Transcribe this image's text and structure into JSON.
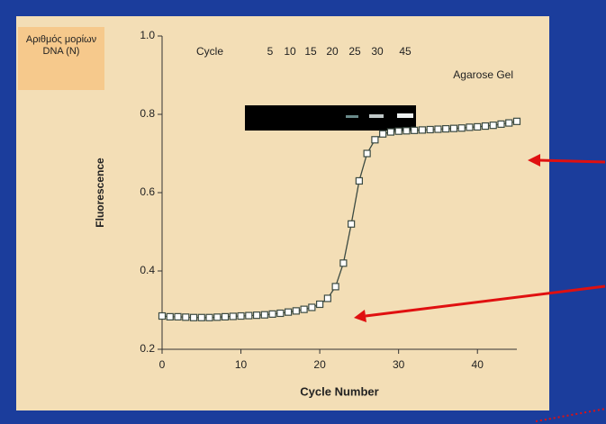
{
  "chart_data": {
    "type": "line",
    "x_label": "Cycle Number",
    "y_label": "Fluorescence",
    "x": [
      0,
      1,
      2,
      3,
      4,
      5,
      6,
      7,
      8,
      9,
      10,
      11,
      12,
      13,
      14,
      15,
      16,
      17,
      18,
      19,
      20,
      21,
      22,
      23,
      24,
      25,
      26,
      27,
      28,
      29,
      30,
      31,
      32,
      33,
      34,
      35,
      36,
      37,
      38,
      39,
      40,
      41,
      42,
      43,
      44,
      45
    ],
    "series": [
      {
        "name": "Fluorescence",
        "color": "#3b4a42",
        "values": [
          0.285,
          0.283,
          0.283,
          0.282,
          0.281,
          0.281,
          0.281,
          0.282,
          0.283,
          0.284,
          0.285,
          0.286,
          0.287,
          0.288,
          0.29,
          0.292,
          0.295,
          0.298,
          0.302,
          0.307,
          0.315,
          0.33,
          0.36,
          0.42,
          0.52,
          0.63,
          0.7,
          0.735,
          0.75,
          0.755,
          0.757,
          0.758,
          0.759,
          0.76,
          0.761,
          0.762,
          0.763,
          0.764,
          0.765,
          0.767,
          0.768,
          0.77,
          0.772,
          0.775,
          0.778,
          0.782
        ]
      }
    ],
    "xlim": [
      0,
      45
    ],
    "ylim": [
      0.2,
      1.0
    ],
    "xticks": [
      0,
      10,
      20,
      30,
      40
    ],
    "yticks": [
      0.2,
      0.4,
      0.6,
      0.8,
      {
        "value": 1,
        "label": "1.0"
      }
    ],
    "annotations": {
      "label_box": "Αριθμός μορίων DNA (N)",
      "gel_label": "Cycle",
      "gel_lanes": [
        "5",
        "10",
        "15",
        "20",
        "25",
        "30",
        "45"
      ],
      "gel_title": "Agarose Gel"
    }
  }
}
